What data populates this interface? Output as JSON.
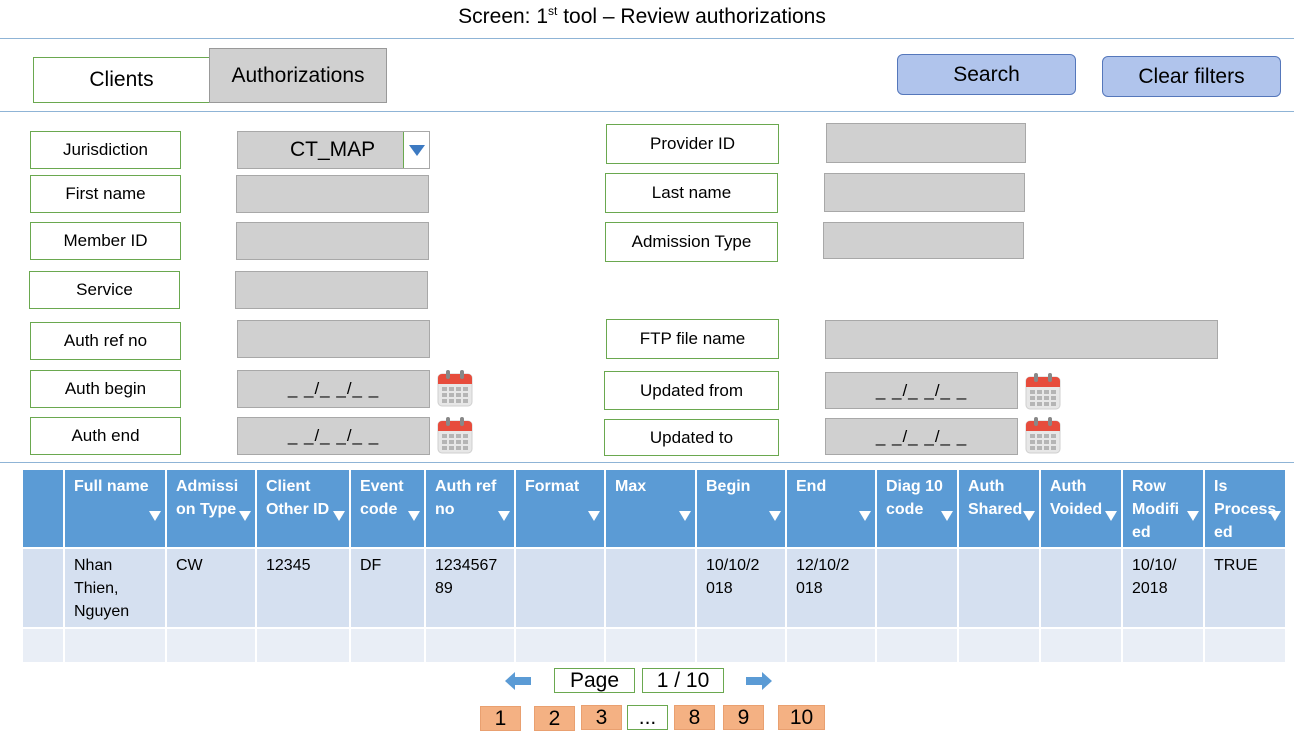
{
  "screen": {
    "title_prefix": "Screen: 1",
    "title_sup": "st",
    "title_suffix": " tool – Review authorizations"
  },
  "tabs": [
    {
      "label": "Clients"
    },
    {
      "label": "Authorizations"
    }
  ],
  "buttons": {
    "search": "Search",
    "clear": "Clear filters"
  },
  "filters": {
    "jurisdiction": {
      "label": "Jurisdiction",
      "value": "CT_MAP"
    },
    "first_name": {
      "label": "First name"
    },
    "member_id": {
      "label": "Member ID"
    },
    "service": {
      "label": "Service"
    },
    "auth_ref_no": {
      "label": "Auth ref no"
    },
    "auth_begin": {
      "label": "Auth begin",
      "value": "_ _/_ _/_ _"
    },
    "auth_end": {
      "label": "Auth end",
      "value": "_ _/_ _/_ _"
    },
    "provider_id": {
      "label": "Provider ID"
    },
    "last_name": {
      "label": "Last name"
    },
    "admission_type": {
      "label": "Admission Type"
    },
    "ftp_file_name": {
      "label": "FTP file name"
    },
    "updated_from": {
      "label": "Updated from",
      "value": "_ _/_ _/_ _"
    },
    "updated_to": {
      "label": "Updated to",
      "value": "_ _/_ _/_ _"
    }
  },
  "table": {
    "columns": [
      {
        "l1": "",
        "l2": "",
        "l3": ""
      },
      {
        "l1": "Full name",
        "l2": "",
        "l3": ""
      },
      {
        "l1": "Admissi",
        "l2": "on Type",
        "l3": ""
      },
      {
        "l1": "Client",
        "l2": "Other ID",
        "l3": ""
      },
      {
        "l1": "Event",
        "l2": "code",
        "l3": ""
      },
      {
        "l1": "Auth ref",
        "l2": "no",
        "l3": ""
      },
      {
        "l1": "Format",
        "l2": "",
        "l3": ""
      },
      {
        "l1": "Max",
        "l2": "",
        "l3": ""
      },
      {
        "l1": "Begin",
        "l2": "",
        "l3": ""
      },
      {
        "l1": "End",
        "l2": "",
        "l3": ""
      },
      {
        "l1": "Diag 10",
        "l2": "code",
        "l3": ""
      },
      {
        "l1": "Auth",
        "l2": "Shared",
        "l3": ""
      },
      {
        "l1": "Auth",
        "l2": "Voided",
        "l3": ""
      },
      {
        "l1": "Row",
        "l2": "Modifi",
        "l3": "ed"
      },
      {
        "l1": "Is",
        "l2": "Process",
        "l3": "ed"
      }
    ],
    "rows": [
      [
        [
          "",
          "",
          ""
        ],
        [
          "Nhan",
          "Thien,",
          "Nguyen"
        ],
        [
          "CW",
          "",
          ""
        ],
        [
          "12345",
          "",
          ""
        ],
        [
          "DF",
          "",
          ""
        ],
        [
          "1234567",
          "89",
          ""
        ],
        [
          "",
          "",
          ""
        ],
        [
          "",
          "",
          ""
        ],
        [
          "10/10/2",
          "018",
          ""
        ],
        [
          "12/10/2",
          "018",
          ""
        ],
        [
          "",
          "",
          ""
        ],
        [
          "",
          "",
          ""
        ],
        [
          "",
          "",
          ""
        ],
        [
          "10/10/",
          "2018",
          ""
        ],
        [
          "TRUE",
          "",
          ""
        ]
      ]
    ]
  },
  "pagination": {
    "page_label": "Page",
    "current": "1 / 10",
    "pages": [
      "1",
      "2",
      "3",
      "...",
      "8",
      "9",
      "10"
    ]
  },
  "icons": {
    "prev": "left-arrow-icon",
    "next": "right-arrow-icon",
    "calendar": "calendar-icon",
    "dropdown": "chevron-down-icon",
    "filter": "filter-triangle-icon"
  },
  "colors": {
    "header_blue": "#5b9bd5",
    "row_blue": "#d5e0f0",
    "button_blue": "#b0c4ec",
    "label_border": "#6aa84f",
    "page_orange": "#f4b183"
  }
}
